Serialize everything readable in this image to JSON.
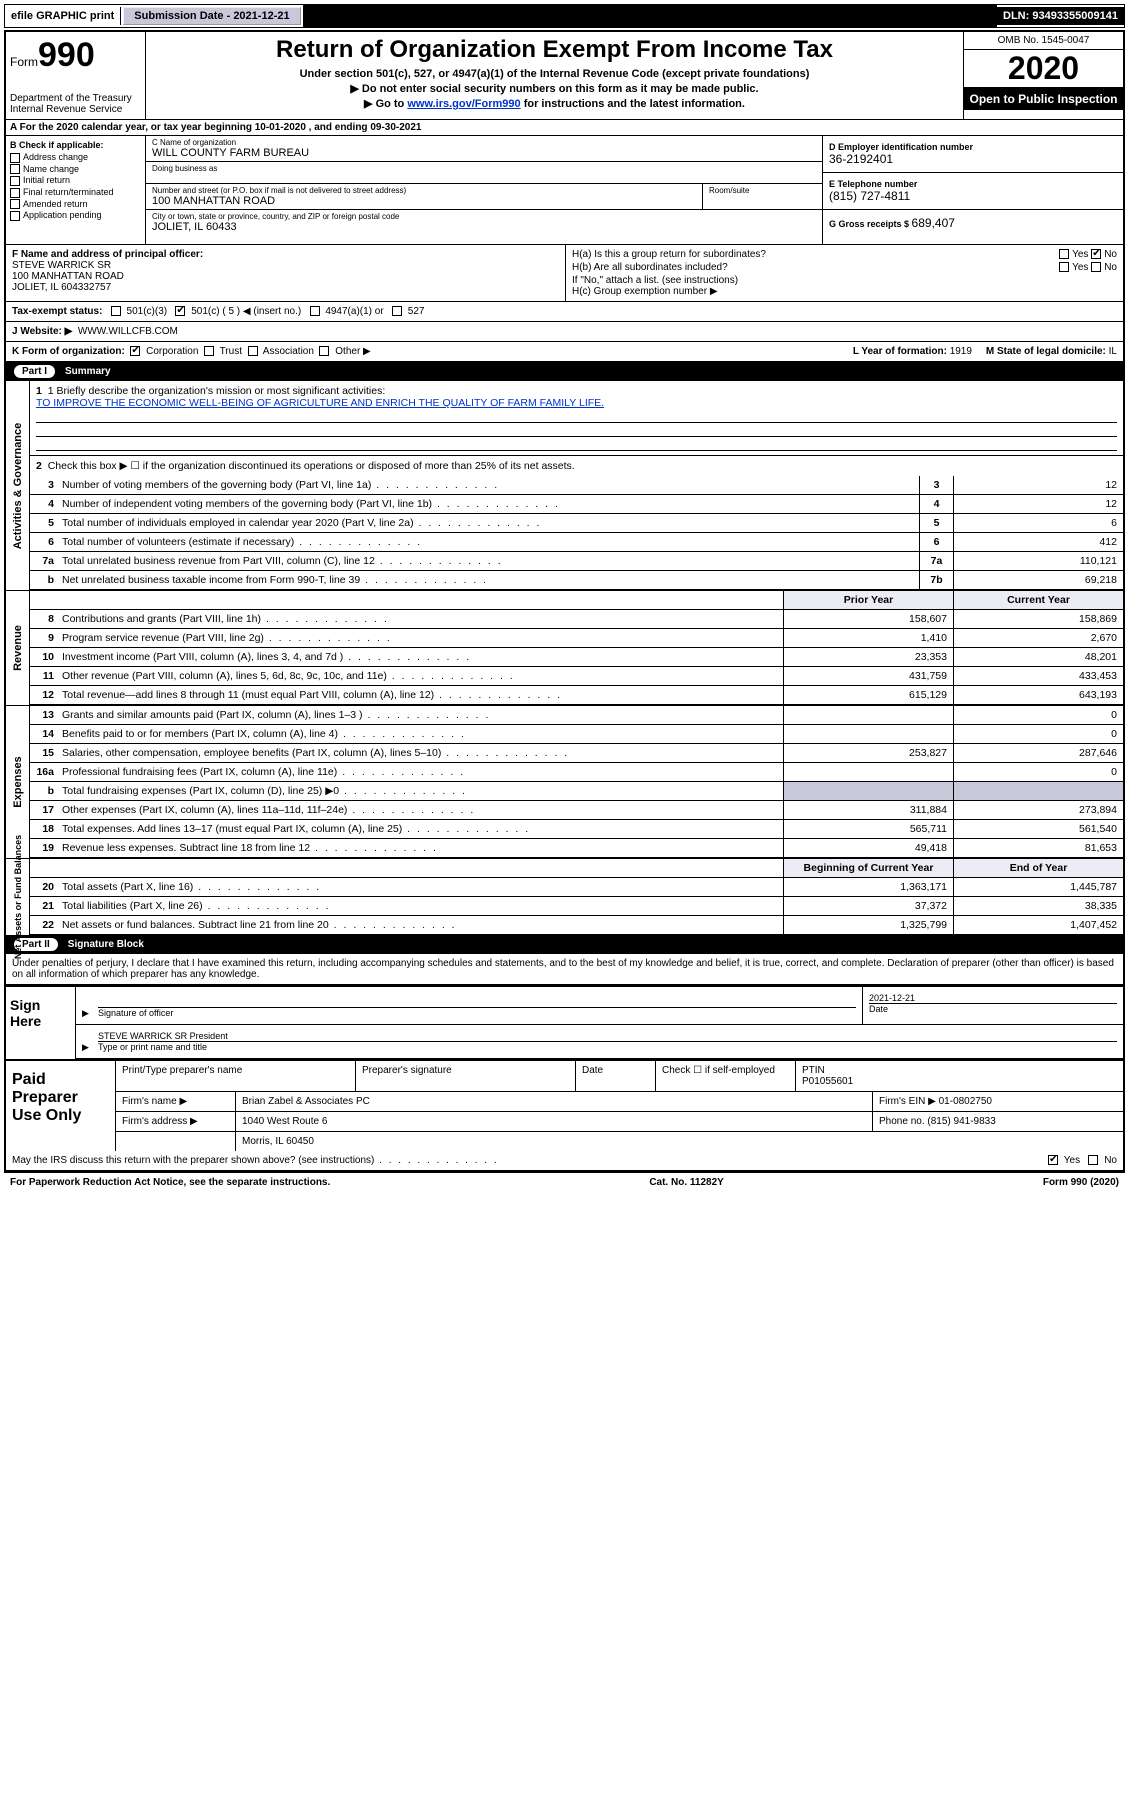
{
  "topbar": {
    "efile_label": "efile GRAPHIC print",
    "submission_label": "Submission Date - 2021-12-21",
    "dln_label": "DLN: 93493355009141"
  },
  "header": {
    "form_word": "Form",
    "form_no": "990",
    "title": "Return of Organization Exempt From Income Tax",
    "under": "Under section 501(c), 527, or 4947(a)(1) of the Internal Revenue Code (except private foundations)",
    "ssn_line": "▶ Do not enter social security numbers on this form as it may be made public.",
    "goto_prefix": "▶ Go to ",
    "goto_link": "www.irs.gov/Form990",
    "goto_suffix": " for instructions and the latest information.",
    "omb": "OMB No. 1545-0047",
    "year": "2020",
    "open": "Open to Public Inspection",
    "dept": "Department of the Treasury",
    "irs": "Internal Revenue Service"
  },
  "lineA": "A  For the 2020 calendar year, or tax year beginning 10-01-2020    , and ending 09-30-2021",
  "colB": {
    "heading": "B Check if applicable:",
    "items": [
      "Address change",
      "Name change",
      "Initial return",
      "Final return/terminated",
      "Amended return",
      "Application pending"
    ]
  },
  "colC": {
    "name_lbl": "C Name of organization",
    "name": "WILL COUNTY FARM BUREAU",
    "dba_lbl": "Doing business as",
    "addr_lbl": "Number and street (or P.O. box if mail is not delivered to street address)",
    "room_lbl": "Room/suite",
    "addr": "100 MANHATTAN ROAD",
    "city_lbl": "City or town, state or province, country, and ZIP or foreign postal code",
    "city": "JOLIET, IL  60433"
  },
  "colD": {
    "ein_lbl": "D Employer identification number",
    "ein": "36-2192401",
    "tel_lbl": "E Telephone number",
    "tel": "(815) 727-4811",
    "gross_lbl": "G Gross receipts $ ",
    "gross": "689,407"
  },
  "f_block": {
    "lbl": "F Name and address of principal officer:",
    "name": "STEVE WARRICK SR",
    "addr1": "100 MANHATTAN ROAD",
    "addr2": "JOLIET, IL  604332757"
  },
  "h_block": {
    "ha": "H(a)  Is this a group return for subordinates?",
    "hb": "H(b)  Are all subordinates included?",
    "hb_note": "If \"No,\" attach a list. (see instructions)",
    "hc": "H(c)  Group exemption number ▶",
    "yes": "Yes",
    "no": "No"
  },
  "tax_status": {
    "lbl": "Tax-exempt status:",
    "c3": "501(c)(3)",
    "c5": "501(c) ( 5 ) ◀ (insert no.)",
    "a1": "4947(a)(1) or",
    "s527": "527"
  },
  "lineJ": {
    "lbl": "J    Website: ▶",
    "val": "WWW.WILLCFB.COM"
  },
  "lineK": {
    "lbl": "K Form of organization:",
    "corp": "Corporation",
    "trust": "Trust",
    "assoc": "Association",
    "other": "Other ▶",
    "year_lbl": "L Year of formation: ",
    "year": "1919",
    "state_lbl": "M State of legal domicile: ",
    "state": "IL"
  },
  "partI": {
    "no": "Part I",
    "title": "Summary"
  },
  "briefly": {
    "lbl": "1   Briefly describe the organization's mission or most significant activities:",
    "mission": "TO IMPROVE THE ECONOMIC WELL-BEING OF AGRICULTURE AND ENRICH THE QUALITY OF FARM FAMILY LIFE."
  },
  "line2": "Check this box ▶ ☐  if the organization discontinued its operations or disposed of more than 25% of its net assets.",
  "gov_lines": [
    {
      "n": "3",
      "d": "Number of voting members of the governing body (Part VI, line 1a)",
      "b": "3",
      "v": "12"
    },
    {
      "n": "4",
      "d": "Number of independent voting members of the governing body (Part VI, line 1b)",
      "b": "4",
      "v": "12"
    },
    {
      "n": "5",
      "d": "Total number of individuals employed in calendar year 2020 (Part V, line 2a)",
      "b": "5",
      "v": "6"
    },
    {
      "n": "6",
      "d": "Total number of volunteers (estimate if necessary)",
      "b": "6",
      "v": "412"
    },
    {
      "n": "7a",
      "d": "Total unrelated business revenue from Part VIII, column (C), line 12",
      "b": "7a",
      "v": "110,121"
    },
    {
      "n": "b",
      "d": "Net unrelated business taxable income from Form 990-T, line 39",
      "b": "7b",
      "v": "69,218"
    }
  ],
  "rev_hdr": {
    "py": "Prior Year",
    "cy": "Current Year"
  },
  "rev_lines": [
    {
      "n": "8",
      "d": "Contributions and grants (Part VIII, line 1h)",
      "py": "158,607",
      "cy": "158,869"
    },
    {
      "n": "9",
      "d": "Program service revenue (Part VIII, line 2g)",
      "py": "1,410",
      "cy": "2,670"
    },
    {
      "n": "10",
      "d": "Investment income (Part VIII, column (A), lines 3, 4, and 7d )",
      "py": "23,353",
      "cy": "48,201"
    },
    {
      "n": "11",
      "d": "Other revenue (Part VIII, column (A), lines 5, 6d, 8c, 9c, 10c, and 11e)",
      "py": "431,759",
      "cy": "433,453"
    },
    {
      "n": "12",
      "d": "Total revenue—add lines 8 through 11 (must equal Part VIII, column (A), line 12)",
      "py": "615,129",
      "cy": "643,193"
    }
  ],
  "exp_lines": [
    {
      "n": "13",
      "d": "Grants and similar amounts paid (Part IX, column (A), lines 1–3 )",
      "py": "",
      "cy": "0"
    },
    {
      "n": "14",
      "d": "Benefits paid to or for members (Part IX, column (A), line 4)",
      "py": "",
      "cy": "0"
    },
    {
      "n": "15",
      "d": "Salaries, other compensation, employee benefits (Part IX, column (A), lines 5–10)",
      "py": "253,827",
      "cy": "287,646"
    },
    {
      "n": "16a",
      "d": "Professional fundraising fees (Part IX, column (A), line 11e)",
      "py": "",
      "cy": "0"
    },
    {
      "n": "b",
      "d": "Total fundraising expenses (Part IX, column (D), line 25) ▶0",
      "py": "GRAY",
      "cy": "GRAY"
    },
    {
      "n": "17",
      "d": "Other expenses (Part IX, column (A), lines 11a–11d, 11f–24e)",
      "py": "311,884",
      "cy": "273,894"
    },
    {
      "n": "18",
      "d": "Total expenses. Add lines 13–17 (must equal Part IX, column (A), line 25)",
      "py": "565,711",
      "cy": "561,540"
    },
    {
      "n": "19",
      "d": "Revenue less expenses. Subtract line 18 from line 12",
      "py": "49,418",
      "cy": "81,653"
    }
  ],
  "net_hdr": {
    "bc": "Beginning of Current Year",
    "ey": "End of Year"
  },
  "net_lines": [
    {
      "n": "20",
      "d": "Total assets (Part X, line 16)",
      "py": "1,363,171",
      "cy": "1,445,787"
    },
    {
      "n": "21",
      "d": "Total liabilities (Part X, line 26)",
      "py": "37,372",
      "cy": "38,335"
    },
    {
      "n": "22",
      "d": "Net assets or fund balances. Subtract line 21 from line 20",
      "py": "1,325,799",
      "cy": "1,407,452"
    }
  ],
  "side_labels": {
    "gov": "Activities & Governance",
    "rev": "Revenue",
    "exp": "Expenses",
    "net": "Net Assets or Fund Balances"
  },
  "partII": {
    "no": "Part II",
    "title": "Signature Block"
  },
  "sig": {
    "penalty": "Under penalties of perjury, I declare that I have examined this return, including accompanying schedules and statements, and to the best of my knowledge and belief, it is true, correct, and complete. Declaration of preparer (other than officer) is based on all information of which preparer has any knowledge.",
    "sign_here": "Sign Here",
    "sig_officer_lbl": "Signature of officer",
    "date_lbl": "Date",
    "date_val": "2021-12-21",
    "typed_name": "STEVE WARRICK SR  President",
    "typed_lbl": "Type or print name and title"
  },
  "prep": {
    "title": "Paid Preparer Use Only",
    "pt_name_lbl": "Print/Type preparer's name",
    "sig_lbl": "Preparer's signature",
    "date_lbl": "Date",
    "check_lbl": "Check ☐ if self-employed",
    "ptin_lbl": "PTIN",
    "ptin": "P01055601",
    "firm_name_lbl": "Firm's name    ▶",
    "firm_name": "Brian Zabel & Associates PC",
    "firm_ein_lbl": "Firm's EIN ▶",
    "firm_ein": "01-0802750",
    "firm_addr_lbl": "Firm's address ▶",
    "firm_addr1": "1040 West Route 6",
    "firm_addr2": "Morris, IL  60450",
    "phone_lbl": "Phone no.",
    "phone": "(815) 941-9833"
  },
  "discuss": {
    "q": "May the IRS discuss this return with the preparer shown above? (see instructions)",
    "yes": "Yes",
    "no": "No"
  },
  "footer": {
    "pra": "For Paperwork Reduction Act Notice, see the separate instructions.",
    "cat": "Cat. No. 11282Y",
    "form": "Form 990 (2020)"
  }
}
